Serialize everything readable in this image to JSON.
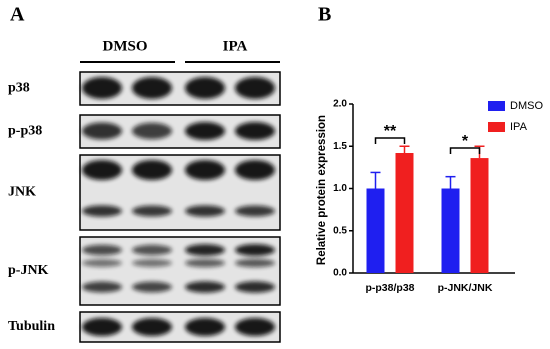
{
  "panel_a": {
    "label": "A",
    "groups": [
      "DMSO",
      "IPA"
    ],
    "rows": [
      "p38",
      "p-p38",
      "JNK",
      "p-JNK",
      "Tubulin"
    ]
  },
  "panel_b": {
    "label": "B"
  },
  "chart_data": {
    "type": "bar",
    "y_label": "Relative protein expression",
    "categories": [
      "p-p38/p38",
      "p-JNK/JNK"
    ],
    "series": [
      {
        "name": "DMSO",
        "color": "#1f1ff0",
        "values": [
          1.0,
          1.0
        ],
        "errors": [
          0.19,
          0.14
        ]
      },
      {
        "name": "IPA",
        "color": "#f01f1f",
        "values": [
          1.42,
          1.36
        ],
        "errors": [
          0.08,
          0.14
        ]
      }
    ],
    "ylim": [
      0,
      2.0
    ],
    "yticks": [
      {
        "value": 0,
        "label": "0.0"
      },
      0.5,
      {
        "value": 1,
        "label": "1.0"
      },
      1.5,
      {
        "value": 2,
        "label": "2.0"
      }
    ],
    "annotations": [
      "**",
      "*"
    ],
    "legend": "top-right"
  }
}
